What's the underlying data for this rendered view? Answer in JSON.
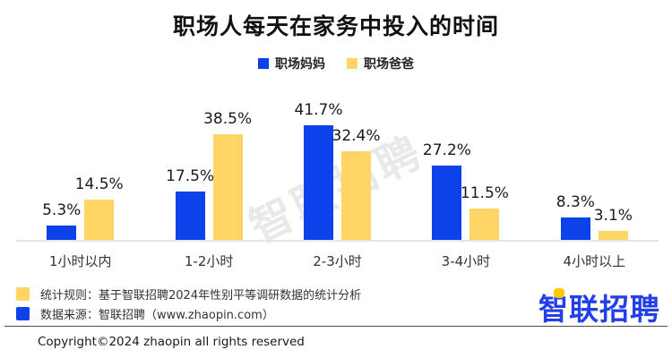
{
  "title": "职场人每天在家务中投入的时间",
  "colors": {
    "mom_blue": "#0d41e9",
    "dad_yellow": "#ffd666",
    "logo_blue": "#2340e8",
    "logo_yellow": "#ffc900",
    "baseline_gray": "#e6e6e6"
  },
  "legend": {
    "items": [
      {
        "label": "职场妈妈",
        "color": "#0d41e9"
      },
      {
        "label": "职场爸爸",
        "color": "#ffd666"
      }
    ]
  },
  "chart_data": {
    "type": "bar",
    "title": "职场人每天在家务中投入的时间",
    "categories": [
      "1小时以内",
      "1-2小时",
      "2-3小时",
      "3-4小时",
      "4小时以上"
    ],
    "series": [
      {
        "name": "职场妈妈",
        "color": "#0d41e9",
        "values": [
          5.3,
          17.5,
          41.7,
          27.2,
          8.3
        ]
      },
      {
        "name": "职场爸爸",
        "color": "#ffd666",
        "values": [
          14.5,
          38.5,
          32.4,
          11.5,
          3.1
        ]
      }
    ],
    "value_suffix": "%",
    "xlabel": "",
    "ylabel": "",
    "ylim": [
      0,
      45
    ],
    "grid": false,
    "y_axis_visible": false,
    "data_labels": true,
    "legend_position": "top-center"
  },
  "watermark": "智联招聘",
  "notes": [
    {
      "swatch_color": "#ffd666",
      "text": "统计规则：基于智联招聘2024年性别平等调研数据的统计分析"
    },
    {
      "swatch_color": "#0d41e9",
      "text": "数据来源：智联招聘（www.zhaopin.com）"
    }
  ],
  "logo": {
    "text": "智联招聘"
  },
  "copyright": "Copyright©2024 zhaopin all rights reserved"
}
